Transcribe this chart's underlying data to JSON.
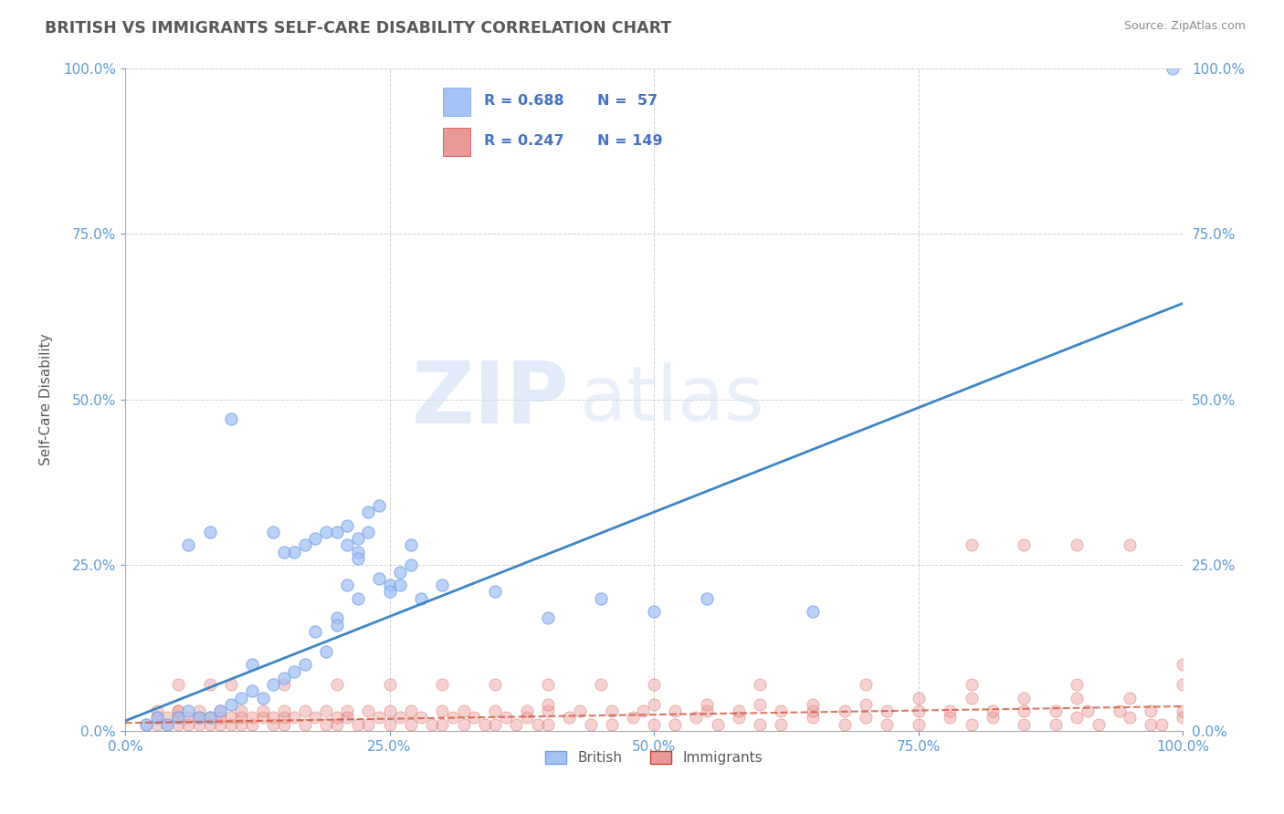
{
  "title": "BRITISH VS IMMIGRANTS SELF-CARE DISABILITY CORRELATION CHART",
  "source": "Source: ZipAtlas.com",
  "ylabel": "Self-Care Disability",
  "british_color": "#a4c2f4",
  "british_color_edge": "#6d9eeb",
  "british_line_color": "#3d85c8",
  "immigrant_color": "#ea9999",
  "immigrant_color_edge": "#cc4125",
  "immigrant_line_color": "#cc4125",
  "british_R": 0.688,
  "british_N": 57,
  "immigrant_R": 0.247,
  "immigrant_N": 149,
  "british_slope": 0.63,
  "british_intercept": 1.5,
  "immigrant_slope": 0.025,
  "immigrant_intercept": 1.2,
  "watermark_zip": "ZIP",
  "watermark_atlas": "atlas",
  "background_color": "#ffffff",
  "grid_color": "#cccccc",
  "tick_color": "#5b9bd5",
  "title_color": "#595959",
  "legend_R_color": "#4472c4",
  "british_scatter_x": [
    2,
    3,
    4,
    5,
    6,
    7,
    8,
    9,
    10,
    11,
    12,
    13,
    14,
    15,
    16,
    16,
    17,
    18,
    19,
    20,
    20,
    21,
    22,
    22,
    23,
    24,
    25,
    26,
    27,
    28,
    30,
    35,
    40,
    45,
    50,
    55,
    65,
    6,
    8,
    10,
    12,
    14,
    15,
    17,
    18,
    19,
    20,
    21,
    21,
    22,
    22,
    23,
    24,
    25,
    26,
    27,
    99
  ],
  "british_scatter_y": [
    1,
    2,
    1,
    2,
    3,
    2,
    2,
    3,
    4,
    5,
    6,
    5,
    7,
    8,
    9,
    27,
    10,
    15,
    12,
    17,
    16,
    22,
    20,
    27,
    30,
    23,
    22,
    24,
    28,
    20,
    22,
    21,
    17,
    20,
    18,
    20,
    18,
    28,
    30,
    47,
    10,
    30,
    27,
    28,
    29,
    30,
    30,
    31,
    28,
    26,
    29,
    33,
    34,
    21,
    22,
    25,
    100
  ],
  "immigrant_scatter_x": [
    2,
    3,
    3,
    4,
    4,
    5,
    5,
    5,
    6,
    6,
    7,
    7,
    8,
    8,
    9,
    9,
    10,
    10,
    11,
    11,
    12,
    12,
    13,
    14,
    14,
    15,
    15,
    16,
    17,
    18,
    19,
    20,
    20,
    21,
    22,
    23,
    24,
    25,
    26,
    27,
    28,
    29,
    30,
    31,
    32,
    33,
    34,
    35,
    36,
    37,
    38,
    39,
    40,
    42,
    44,
    46,
    48,
    50,
    52,
    54,
    56,
    58,
    60,
    62,
    65,
    68,
    70,
    72,
    75,
    78,
    80,
    82,
    85,
    88,
    90,
    92,
    95,
    97,
    98,
    100,
    3,
    5,
    7,
    9,
    11,
    13,
    15,
    17,
    19,
    21,
    23,
    25,
    27,
    30,
    32,
    35,
    38,
    40,
    43,
    46,
    49,
    52,
    55,
    58,
    62,
    65,
    68,
    72,
    75,
    78,
    82,
    85,
    88,
    91,
    94,
    97,
    100,
    75,
    80,
    85,
    90,
    95,
    100,
    40,
    50,
    55,
    60,
    65,
    70,
    5,
    8,
    10,
    15,
    20,
    25,
    30,
    35,
    40,
    45,
    50,
    60,
    70,
    80,
    90,
    100,
    80,
    85,
    90,
    95
  ],
  "immigrant_scatter_y": [
    1,
    1,
    2,
    1,
    2,
    1,
    2,
    3,
    1,
    2,
    1,
    2,
    1,
    2,
    1,
    2,
    1,
    2,
    1,
    2,
    1,
    2,
    2,
    1,
    2,
    1,
    2,
    2,
    1,
    2,
    1,
    1,
    2,
    2,
    1,
    1,
    2,
    1,
    2,
    1,
    2,
    1,
    1,
    2,
    1,
    2,
    1,
    1,
    2,
    1,
    2,
    1,
    1,
    2,
    1,
    1,
    2,
    1,
    1,
    2,
    1,
    2,
    1,
    1,
    2,
    1,
    2,
    1,
    1,
    2,
    1,
    2,
    1,
    1,
    2,
    1,
    2,
    1,
    1,
    2,
    3,
    3,
    3,
    3,
    3,
    3,
    3,
    3,
    3,
    3,
    3,
    3,
    3,
    3,
    3,
    3,
    3,
    3,
    3,
    3,
    3,
    3,
    3,
    3,
    3,
    3,
    3,
    3,
    3,
    3,
    3,
    3,
    3,
    3,
    3,
    3,
    3,
    5,
    5,
    5,
    5,
    5,
    10,
    4,
    4,
    4,
    4,
    4,
    4,
    7,
    7,
    7,
    7,
    7,
    7,
    7,
    7,
    7,
    7,
    7,
    7,
    7,
    7,
    7,
    7,
    28,
    28,
    28,
    28
  ]
}
